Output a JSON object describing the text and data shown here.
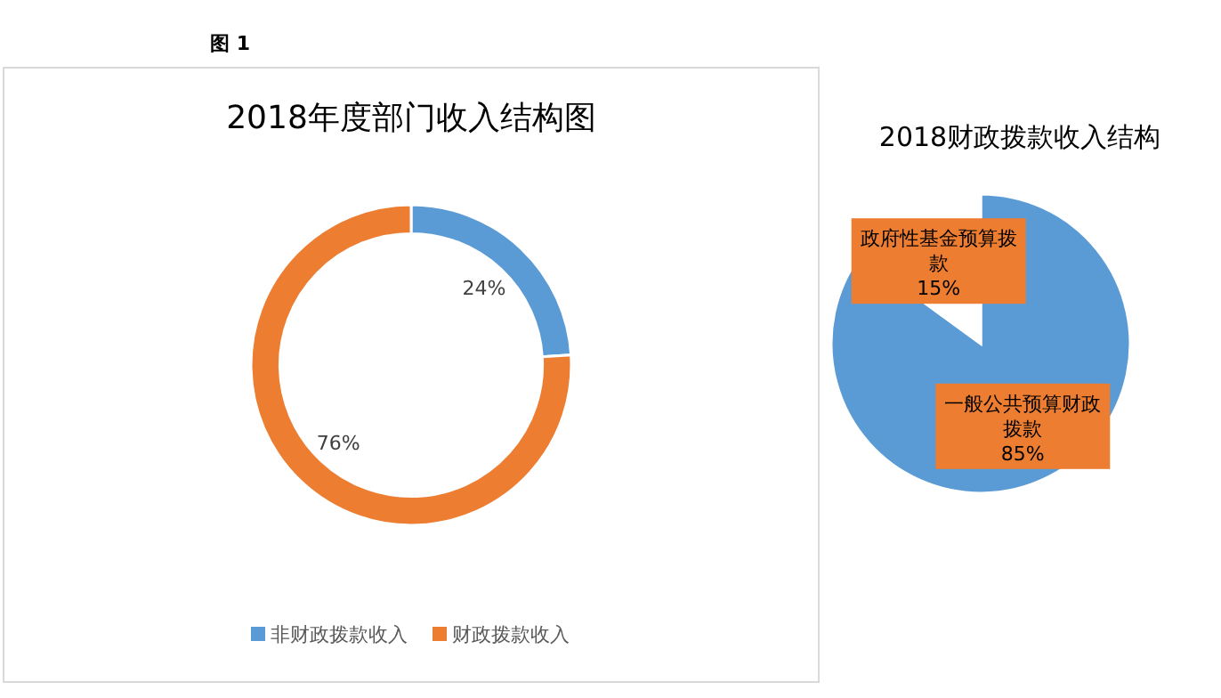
{
  "chart_data": [
    {
      "type": "donut",
      "title": "2018年度部门收入结构图",
      "annotations": [
        "图 1"
      ],
      "categories": [
        "非财政拨款收入",
        "财政拨款收入"
      ],
      "values": [
        24,
        76
      ],
      "colors": [
        "#5b9bd5",
        "#ed7d31"
      ],
      "value_labels": [
        "24%",
        "76%"
      ],
      "legend": "bottom"
    },
    {
      "type": "pie",
      "title": "2018财政拨款收入结构",
      "categories": [
        "一般公共预算财政拨款",
        "政府性基金预算拨款"
      ],
      "values": [
        85,
        15
      ],
      "colors": [
        "#5b9bd5",
        "#ffffff"
      ],
      "value_labels": [
        "85%",
        "15%"
      ]
    }
  ]
}
